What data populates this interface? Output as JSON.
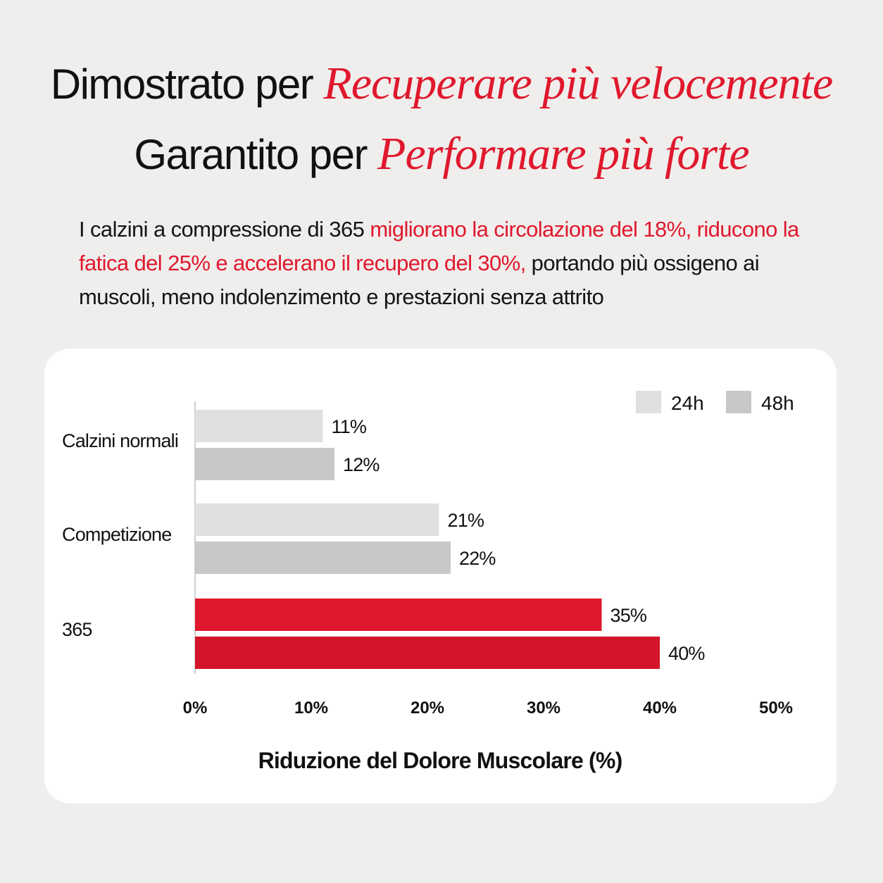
{
  "headline": {
    "line1_plain": "Dimostrato per ",
    "line1_accent": "Recuperare più velocemente",
    "line2_plain": "Garantito per ",
    "line2_accent": "Performare più forte"
  },
  "intro": {
    "part1": "I calzini a compressione di 365 ",
    "part2_red": "migliorano la circolazione del 18%, riducono la fatica del 25% e accelerano il recupero del 30%,",
    "part3": " portando più ossigeno ai muscoli, meno indolenzimento e prestazioni senza attrito"
  },
  "colors": {
    "accent": "#e0182d",
    "bar_24h": "#e0e0e0",
    "bar_48h": "#c8c8c8",
    "bar_365": "#e0182d",
    "bar_365_48h": "#d41428"
  },
  "chart_data": {
    "type": "bar",
    "orientation": "horizontal",
    "categories": [
      "Calzini normali",
      "Competizione",
      "365"
    ],
    "series": [
      {
        "name": "24h",
        "values": [
          11,
          21,
          35
        ],
        "value_labels": [
          "11%",
          "21%",
          "35%"
        ]
      },
      {
        "name": "48h",
        "values": [
          12,
          22,
          40
        ],
        "value_labels": [
          "12%",
          "22%",
          "40%"
        ]
      }
    ],
    "xlabel": "Riduzione del Dolore Muscolare (%)",
    "xlim": [
      0,
      50
    ],
    "xticks": [
      "0%",
      "10%",
      "20%",
      "30%",
      "40%",
      "50%"
    ],
    "legend_position": "top-right",
    "grid": false
  }
}
